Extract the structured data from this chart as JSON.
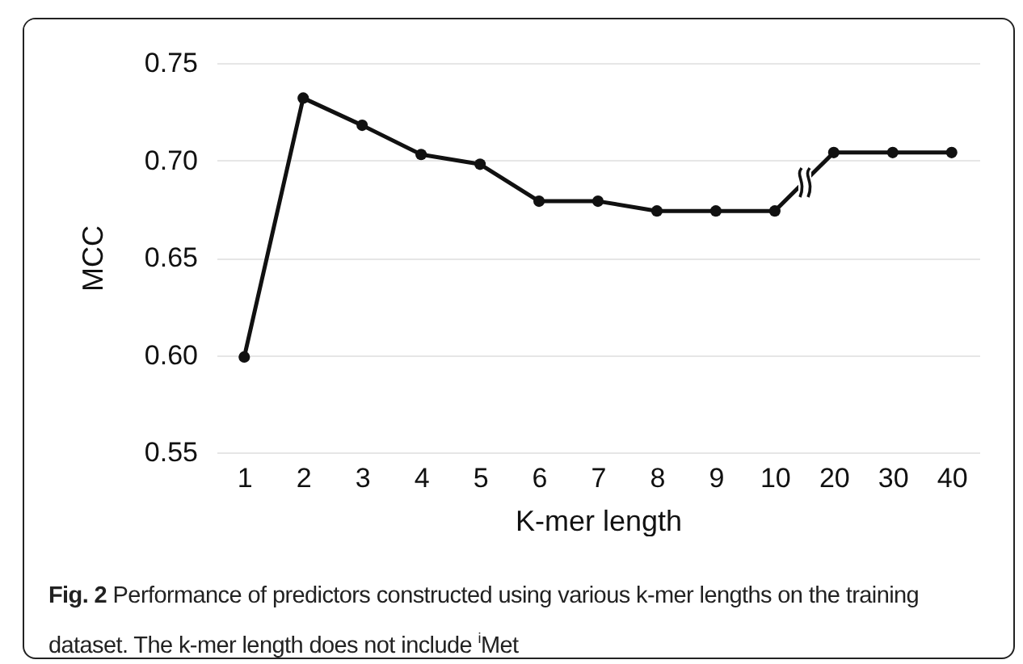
{
  "chart_data": {
    "type": "line",
    "xlabel": "K-mer length",
    "ylabel": "MCC",
    "categories": [
      "1",
      "2",
      "3",
      "4",
      "5",
      "6",
      "7",
      "8",
      "9",
      "10",
      "20",
      "30",
      "40"
    ],
    "series": [
      {
        "color": "#111111",
        "values": [
          0.599,
          0.732,
          0.718,
          0.703,
          0.698,
          0.679,
          0.679,
          0.674,
          0.674,
          0.674,
          0.704,
          0.704,
          0.704
        ]
      }
    ],
    "ylim": [
      0.55,
      0.75
    ],
    "yticks": [
      {
        "value": 0.55,
        "label": "0.55"
      },
      {
        "value": 0.6,
        "label": "0.60"
      },
      {
        "value": 0.65,
        "label": "0.65"
      },
      {
        "value": 0.7,
        "label": "0.70"
      },
      {
        "value": 0.75,
        "label": "0.75"
      }
    ],
    "grid": "y",
    "marker": "circle",
    "line_style": "solid",
    "annotations": [
      "Fig. 2 Performance of predictors constructed using various k-mer lengths on the training dataset. The k-mer length does not include $^{i}$Met"
    ]
  }
}
